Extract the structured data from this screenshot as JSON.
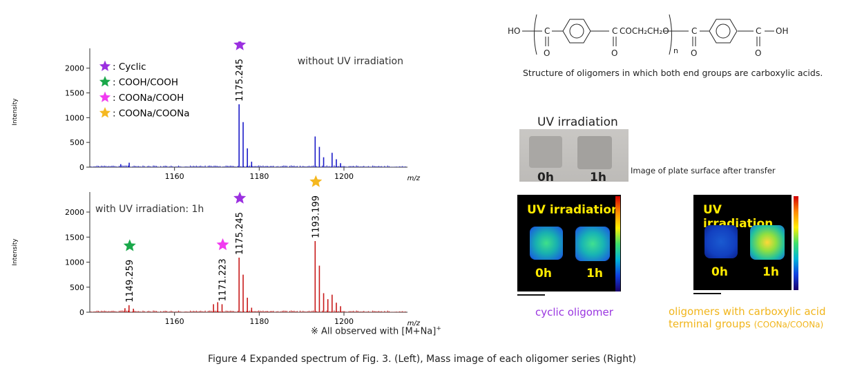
{
  "chart_data": [
    {
      "type": "bar",
      "title": "without UV irradiation",
      "ylabel": "Intensity",
      "xlabel": "m/z",
      "xlim": [
        1140,
        1215
      ],
      "ylim": [
        0,
        2400
      ],
      "xticks": [
        1160,
        1180,
        1200
      ],
      "yticks": [
        0,
        500,
        1000,
        1500,
        2000
      ],
      "color": "#1a1ac8",
      "peaks": [
        {
          "x": 1175.245,
          "y": 1270
        },
        {
          "x": 1176.2,
          "y": 910
        },
        {
          "x": 1177.2,
          "y": 380
        },
        {
          "x": 1178.2,
          "y": 110
        },
        {
          "x": 1193.2,
          "y": 620
        },
        {
          "x": 1194.2,
          "y": 410
        },
        {
          "x": 1195.2,
          "y": 200
        },
        {
          "x": 1197.2,
          "y": 290
        },
        {
          "x": 1198.2,
          "y": 160
        },
        {
          "x": 1199.2,
          "y": 80
        },
        {
          "x": 1149.3,
          "y": 90
        },
        {
          "x": 1147.3,
          "y": 60
        }
      ],
      "peak_labels": [
        {
          "x": 1175.245,
          "text": "1175.245",
          "marker": "cyclic"
        }
      ]
    },
    {
      "type": "bar",
      "title": "with UV irradiation: 1h",
      "ylabel": "Intensity",
      "xlabel": "m/z",
      "xlim": [
        1140,
        1215
      ],
      "ylim": [
        0,
        2400
      ],
      "xticks": [
        1160,
        1180,
        1200
      ],
      "yticks": [
        0,
        500,
        1000,
        1500,
        2000
      ],
      "color": "#c81a1a",
      "peaks": [
        {
          "x": 1149.259,
          "y": 140
        },
        {
          "x": 1148.3,
          "y": 80
        },
        {
          "x": 1150.3,
          "y": 70
        },
        {
          "x": 1169.2,
          "y": 160
        },
        {
          "x": 1170.2,
          "y": 200
        },
        {
          "x": 1171.223,
          "y": 160
        },
        {
          "x": 1175.245,
          "y": 1090
        },
        {
          "x": 1176.2,
          "y": 750
        },
        {
          "x": 1177.2,
          "y": 290
        },
        {
          "x": 1178.2,
          "y": 90
        },
        {
          "x": 1193.199,
          "y": 1420
        },
        {
          "x": 1194.2,
          "y": 930
        },
        {
          "x": 1195.2,
          "y": 380
        },
        {
          "x": 1196.2,
          "y": 260
        },
        {
          "x": 1197.2,
          "y": 350
        },
        {
          "x": 1198.2,
          "y": 190
        },
        {
          "x": 1199.2,
          "y": 120
        }
      ],
      "peak_labels": [
        {
          "x": 1149.259,
          "text": "1149.259",
          "marker": "cooh_cooh"
        },
        {
          "x": 1171.223,
          "text": "1171.223",
          "marker": "coona_cooh"
        },
        {
          "x": 1175.245,
          "text": "1175.245",
          "marker": "cyclic"
        },
        {
          "x": 1193.199,
          "text": "1193.199",
          "marker": "coona_coona"
        }
      ]
    }
  ],
  "legend": [
    {
      "key": "cyclic",
      "label": ": Cyclic",
      "color": "#9b30e0"
    },
    {
      "key": "cooh_cooh",
      "label": ": COOH/COOH",
      "color": "#1aa84a"
    },
    {
      "key": "coona_cooh",
      "label": ": COONa/COOH",
      "color": "#f13cf0"
    },
    {
      "key": "coona_coona",
      "label": ": COONa/COONa",
      "color": "#f5b820"
    }
  ],
  "note": "※ All observed with [M+Na]",
  "note_sup": "+",
  "structure": {
    "left_end": "HO",
    "ester_group": "COCH₂CH₂O",
    "right_end": "OH",
    "repeat_subscript": "n",
    "carbonyl": "C",
    "oxygen": "O",
    "caption": "Structure of oligomers in which both end groups are carboxylic acids."
  },
  "plate": {
    "title": "UV irradiation",
    "labels": [
      "0h",
      "1h"
    ],
    "caption": "Image of plate surface after transfer"
  },
  "mass_images": [
    {
      "title": "UV irradiation",
      "labels": [
        "0h",
        "1h"
      ],
      "caption": "cyclic oligomer",
      "caption_color": "#9a36e0"
    },
    {
      "title": "UV irradiation",
      "labels": [
        "0h",
        "1h"
      ],
      "caption_line1": "oligomers with carboxylic acid",
      "caption_line2": "terminal groups",
      "caption_small": "(COONa/COONa)",
      "caption_color": "#f1b51b"
    }
  ],
  "figure_caption": "Figure 4   Expanded spectrum of Fig. 3. (Left),   Mass image of each oligomer series (Right)"
}
